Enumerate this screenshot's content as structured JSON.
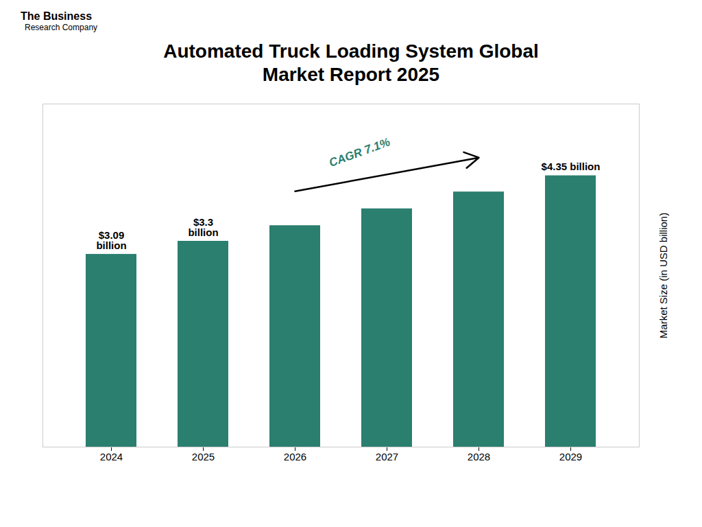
{
  "chart_data": {
    "type": "bar",
    "title": "Automated Truck Loading System Global\nMarket Report 2025",
    "ylabel": "Market Size (in USD billion)",
    "categories": [
      "2024",
      "2025",
      "2026",
      "2027",
      "2028",
      "2029"
    ],
    "values": [
      3.09,
      3.3,
      3.55,
      3.82,
      4.09,
      4.35
    ],
    "value_labels": [
      "$3.09\nbillion",
      "$3.3\nbillion",
      null,
      null,
      null,
      "$4.35 billion"
    ],
    "data_labels": true,
    "color": "#2a7f6f",
    "ylim": [
      0,
      5.5
    ],
    "yticks": [],
    "tick_labels": "x",
    "grid": false,
    "annotations": [
      "CAGR 7.1%",
      "The Business",
      "Research Company"
    ]
  }
}
